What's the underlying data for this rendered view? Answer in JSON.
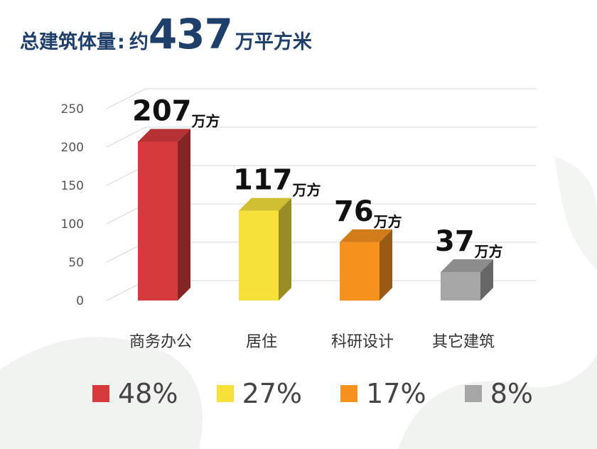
{
  "title": {
    "label": "总建筑体量",
    "separator": ":",
    "prefix": "约",
    "value": "437",
    "unit": "万平方米"
  },
  "chart_data": {
    "type": "bar",
    "categories": [
      "商务办公",
      "居住",
      "科研设计",
      "其它建筑"
    ],
    "values": [
      207,
      117,
      76,
      37
    ],
    "value_labels": [
      "207",
      "117",
      "76",
      "37"
    ],
    "value_unit": "万方",
    "yticks": [
      "0",
      "50",
      "100",
      "150",
      "200",
      "250"
    ],
    "ylim": [
      0,
      250
    ],
    "grid": true,
    "legend_position": "bottom",
    "series": [
      {
        "values": [
          207,
          117,
          76,
          37
        ],
        "colors": [
          "#d63a3c",
          "#f5e13a",
          "#f7921e",
          "#a6a6a6"
        ]
      }
    ]
  },
  "legend": [
    {
      "label": "48%",
      "color": "#d63a3c"
    },
    {
      "label": "27%",
      "color": "#f5e13a"
    },
    {
      "label": "17%",
      "color": "#f7921e"
    },
    {
      "label": "8%",
      "color": "#a6a6a6"
    }
  ]
}
